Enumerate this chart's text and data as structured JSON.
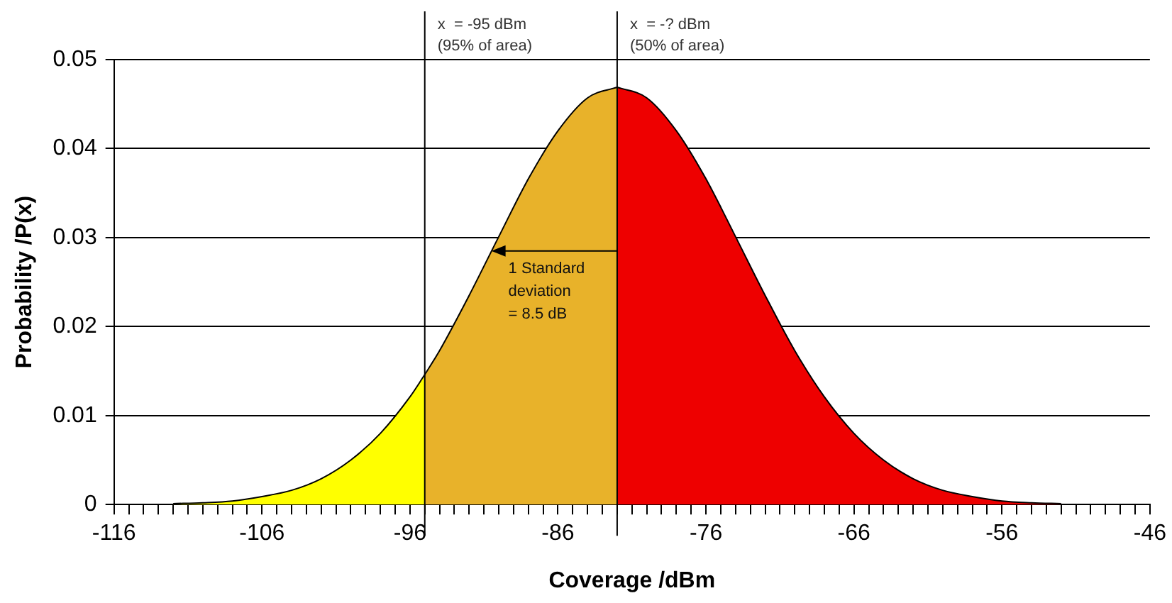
{
  "chart_data": {
    "type": "area",
    "xlabel": "Coverage /dBm",
    "ylabel": "Probability /P(x)",
    "xlim": [
      -116,
      -46
    ],
    "ylim": [
      0,
      0.05
    ],
    "xticks": [
      -116,
      {
        "value": -115,
        "label": null
      },
      {
        "value": -114,
        "label": null
      },
      {
        "value": -113,
        "label": null
      },
      {
        "value": -112,
        "label": null
      },
      {
        "value": -111,
        "label": null
      },
      {
        "value": -110,
        "label": null
      },
      {
        "value": -109,
        "label": null
      },
      {
        "value": -108,
        "label": null
      },
      {
        "value": -107,
        "label": null
      },
      -106,
      {
        "value": -105,
        "label": null
      },
      {
        "value": -104,
        "label": null
      },
      {
        "value": -103,
        "label": null
      },
      {
        "value": -102,
        "label": null
      },
      {
        "value": -101,
        "label": null
      },
      {
        "value": -100,
        "label": null
      },
      {
        "value": -99,
        "label": null
      },
      {
        "value": -98,
        "label": null
      },
      {
        "value": -97,
        "label": null
      },
      -96,
      {
        "value": -95,
        "label": null
      },
      {
        "value": -94,
        "label": null
      },
      {
        "value": -93,
        "label": null
      },
      {
        "value": -92,
        "label": null
      },
      {
        "value": -91,
        "label": null
      },
      {
        "value": -90,
        "label": null
      },
      {
        "value": -89,
        "label": null
      },
      {
        "value": -88,
        "label": null
      },
      {
        "value": -87,
        "label": null
      },
      -86,
      {
        "value": -85,
        "label": null
      },
      {
        "value": -84,
        "label": null
      },
      {
        "value": -83,
        "label": null
      },
      {
        "value": -82,
        "label": null
      },
      {
        "value": -81,
        "label": null
      },
      {
        "value": -80,
        "label": null
      },
      {
        "value": -79,
        "label": null
      },
      {
        "value": -78,
        "label": null
      },
      {
        "value": -77,
        "label": null
      },
      -76,
      {
        "value": -75,
        "label": null
      },
      {
        "value": -74,
        "label": null
      },
      {
        "value": -73,
        "label": null
      },
      {
        "value": -72,
        "label": null
      },
      {
        "value": -71,
        "label": null
      },
      {
        "value": -70,
        "label": null
      },
      {
        "value": -69,
        "label": null
      },
      {
        "value": -68,
        "label": null
      },
      {
        "value": -67,
        "label": null
      },
      -66,
      {
        "value": -65,
        "label": null
      },
      {
        "value": -64,
        "label": null
      },
      {
        "value": -63,
        "label": null
      },
      {
        "value": -62,
        "label": null
      },
      {
        "value": -61,
        "label": null
      },
      {
        "value": -60,
        "label": null
      },
      {
        "value": -59,
        "label": null
      },
      {
        "value": -58,
        "label": null
      },
      {
        "value": -57,
        "label": null
      },
      -56,
      {
        "value": -55,
        "label": null
      },
      {
        "value": -54,
        "label": null
      },
      {
        "value": -53,
        "label": null
      },
      {
        "value": -52,
        "label": null
      },
      {
        "value": -51,
        "label": null
      },
      {
        "value": -50,
        "label": null
      },
      {
        "value": -49,
        "label": null
      },
      {
        "value": -48,
        "label": null
      },
      {
        "value": -47,
        "label": null
      },
      -46
    ],
    "yticks": [
      0,
      0.01,
      0.02,
      0.03,
      0.04,
      0.05
    ],
    "grid": "y",
    "legend": false,
    "series": [
      {
        "color": "#ffff00",
        "x": [
          -112,
          -110,
          -108,
          -106,
          -104,
          -102,
          -100,
          -98,
          -96,
          -95
        ],
        "values": [
          0.0001,
          0.0002,
          0.0004,
          0.0009,
          0.0016,
          0.0029,
          0.005,
          0.008,
          0.0121,
          0.0146
        ]
      },
      {
        "color": "#e8b22a",
        "x": [
          -95,
          -94,
          -92,
          -90,
          -88,
          -86,
          -84,
          -82
        ],
        "values": [
          0.0146,
          0.0173,
          0.0235,
          0.0301,
          0.0366,
          0.042,
          0.0457,
          0.0469
        ]
      },
      {
        "color": "#ee0000",
        "x": [
          -82,
          -80,
          -78,
          -76,
          -74,
          -72,
          -70,
          -68,
          -66,
          -64,
          -62,
          -60,
          -58,
          -56,
          -54,
          -52
        ],
        "values": [
          0.0469,
          0.0457,
          0.042,
          0.0366,
          0.0301,
          0.0235,
          0.0173,
          0.0121,
          0.008,
          0.005,
          0.0029,
          0.0016,
          0.0009,
          0.0004,
          0.0002,
          0.0001
        ]
      }
    ],
    "ref_lines": [
      {
        "axis": "x",
        "value": -95,
        "label": "x  = -95 dBm\n(95% of area)",
        "color": "#000000"
      },
      {
        "axis": "x",
        "value": -82,
        "label": "x  = -? dBm\n(50% of area)",
        "color": "#000000"
      }
    ],
    "annotations": [
      {
        "text": "1 Standard\ndeviation\n= 8.5 dB",
        "x": -90.5,
        "y": 0.0285
      }
    ]
  }
}
